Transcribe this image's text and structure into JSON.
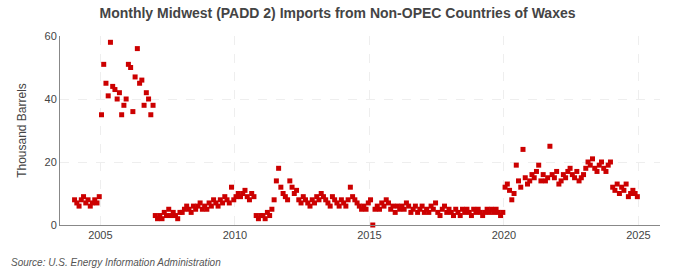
{
  "chart_data": {
    "type": "scatter",
    "title": "Monthly Midwest (PADD 2) Imports from Non-OPEC Countries of Waxes",
    "ylabel": "Thousand Barrels",
    "source": "Source: U.S. Energy Information Administration",
    "color": "#cc0000",
    "marker": "square",
    "grid": true,
    "xlim": [
      2003.5,
      2025.8
    ],
    "xticks": [
      2005,
      2010,
      2015,
      2020,
      2025
    ],
    "ylim": [
      0,
      60
    ],
    "yticks": [
      0,
      20,
      40,
      60
    ],
    "x": [
      2004.0416667,
      2004.125,
      2004.2083333,
      2004.2916667,
      2004.375,
      2004.4583333,
      2004.5416667,
      2004.625,
      2004.7083333,
      2004.7916667,
      2004.875,
      2004.9583333,
      2005.0416667,
      2005.125,
      2005.2083333,
      2005.2916667,
      2005.375,
      2005.4583333,
      2005.5416667,
      2005.625,
      2005.7083333,
      2005.7916667,
      2005.875,
      2005.9583333,
      2006.0416667,
      2006.125,
      2006.2083333,
      2006.2916667,
      2006.375,
      2006.4583333,
      2006.5416667,
      2006.625,
      2006.7083333,
      2006.7916667,
      2006.875,
      2006.9583333,
      2007.0416667,
      2007.125,
      2007.2083333,
      2007.2916667,
      2007.375,
      2007.4583333,
      2007.5416667,
      2007.625,
      2007.7083333,
      2007.7916667,
      2007.875,
      2007.9583333,
      2008.0416667,
      2008.125,
      2008.2083333,
      2008.2916667,
      2008.375,
      2008.4583333,
      2008.5416667,
      2008.625,
      2008.7083333,
      2008.7916667,
      2008.875,
      2008.9583333,
      2009.0416667,
      2009.125,
      2009.2083333,
      2009.2916667,
      2009.375,
      2009.4583333,
      2009.5416667,
      2009.625,
      2009.7083333,
      2009.7916667,
      2009.875,
      2009.9583333,
      2010.0416667,
      2010.125,
      2010.2083333,
      2010.2916667,
      2010.375,
      2010.4583333,
      2010.5416667,
      2010.625,
      2010.7083333,
      2010.7916667,
      2010.875,
      2010.9583333,
      2011.0416667,
      2011.125,
      2011.2083333,
      2011.2916667,
      2011.375,
      2011.4583333,
      2011.5416667,
      2011.625,
      2011.7083333,
      2011.7916667,
      2011.875,
      2011.9583333,
      2012.0416667,
      2012.125,
      2012.2083333,
      2012.2916667,
      2012.375,
      2012.4583333,
      2012.5416667,
      2012.625,
      2012.7083333,
      2012.7916667,
      2012.875,
      2012.9583333,
      2013.0416667,
      2013.125,
      2013.2083333,
      2013.2916667,
      2013.375,
      2013.4583333,
      2013.5416667,
      2013.625,
      2013.7083333,
      2013.7916667,
      2013.875,
      2013.9583333,
      2014.0416667,
      2014.125,
      2014.2083333,
      2014.2916667,
      2014.375,
      2014.4583333,
      2014.5416667,
      2014.625,
      2014.7083333,
      2014.7916667,
      2014.875,
      2014.9583333,
      2015.0416667,
      2015.125,
      2015.2083333,
      2015.2916667,
      2015.375,
      2015.4583333,
      2015.5416667,
      2015.625,
      2015.7083333,
      2015.7916667,
      2015.875,
      2015.9583333,
      2016.0416667,
      2016.125,
      2016.2083333,
      2016.2916667,
      2016.375,
      2016.4583333,
      2016.5416667,
      2016.625,
      2016.7083333,
      2016.7916667,
      2016.875,
      2016.9583333,
      2017.0416667,
      2017.125,
      2017.2083333,
      2017.2916667,
      2017.375,
      2017.4583333,
      2017.5416667,
      2017.625,
      2017.7083333,
      2017.7916667,
      2017.875,
      2017.9583333,
      2018.0416667,
      2018.125,
      2018.2083333,
      2018.2916667,
      2018.375,
      2018.4583333,
      2018.5416667,
      2018.625,
      2018.7083333,
      2018.7916667,
      2018.875,
      2018.9583333,
      2019.0416667,
      2019.125,
      2019.2083333,
      2019.2916667,
      2019.375,
      2019.4583333,
      2019.5416667,
      2019.625,
      2019.7083333,
      2019.7916667,
      2019.875,
      2019.9583333,
      2020.0416667,
      2020.125,
      2020.2083333,
      2020.2916667,
      2020.375,
      2020.4583333,
      2020.5416667,
      2020.625,
      2020.7083333,
      2020.7916667,
      2020.875,
      2020.9583333,
      2021.0416667,
      2021.125,
      2021.2083333,
      2021.2916667,
      2021.375,
      2021.4583333,
      2021.5416667,
      2021.625,
      2021.7083333,
      2021.7916667,
      2021.875,
      2021.9583333,
      2022.0416667,
      2022.125,
      2022.2083333,
      2022.2916667,
      2022.375,
      2022.4583333,
      2022.5416667,
      2022.625,
      2022.7083333,
      2022.7916667,
      2022.875,
      2022.9583333,
      2023.0416667,
      2023.125,
      2023.2083333,
      2023.2916667,
      2023.375,
      2023.4583333,
      2023.5416667,
      2023.625,
      2023.7083333,
      2023.7916667,
      2023.875,
      2023.9583333,
      2024.0416667,
      2024.125,
      2024.2083333,
      2024.2916667,
      2024.375,
      2024.4583333,
      2024.5416667,
      2024.625,
      2024.7083333,
      2024.7916667,
      2024.875,
      2024.9583333
    ],
    "values": [
      8,
      7,
      6,
      8,
      9,
      7,
      8,
      6,
      7,
      8,
      7,
      9,
      35,
      51,
      45,
      41,
      58,
      44,
      43,
      40,
      42,
      35,
      38,
      40,
      51,
      50,
      36,
      47,
      56,
      45,
      46,
      38,
      42,
      40,
      35,
      38,
      3,
      2,
      3,
      2,
      4,
      3,
      5,
      3,
      4,
      3,
      2,
      4,
      4,
      5,
      6,
      5,
      4,
      6,
      5,
      6,
      7,
      5,
      6,
      5,
      7,
      6,
      8,
      7,
      6,
      8,
      7,
      9,
      8,
      7,
      12,
      8,
      9,
      10,
      9,
      10,
      11,
      9,
      8,
      10,
      9,
      3,
      2,
      3,
      3,
      2,
      4,
      3,
      5,
      8,
      14,
      18,
      12,
      10,
      9,
      8,
      14,
      12,
      10,
      11,
      8,
      7,
      9,
      8,
      7,
      6,
      8,
      7,
      9,
      8,
      10,
      9,
      8,
      7,
      6,
      9,
      8,
      7,
      6,
      8,
      7,
      6,
      8,
      12,
      9,
      8,
      7,
      6,
      5,
      6,
      5,
      7,
      8,
      0,
      5,
      6,
      5,
      7,
      6,
      8,
      7,
      5,
      6,
      4,
      6,
      5,
      6,
      5,
      7,
      6,
      4,
      5,
      6,
      4,
      5,
      6,
      4,
      5,
      4,
      6,
      5,
      7,
      4,
      3,
      5,
      6,
      4,
      5,
      4,
      3,
      5,
      4,
      3,
      5,
      4,
      5,
      4,
      3,
      5,
      4,
      5,
      4,
      3,
      4,
      5,
      4,
      5,
      4,
      5,
      4,
      3,
      4,
      12,
      13,
      11,
      8,
      10,
      19,
      14,
      12,
      24,
      15,
      13,
      14,
      16,
      15,
      17,
      19,
      14,
      16,
      14,
      15,
      25,
      16,
      15,
      17,
      13,
      14,
      16,
      15,
      17,
      18,
      16,
      15,
      17,
      14,
      15,
      16,
      18,
      20,
      19,
      21,
      18,
      17,
      19,
      20,
      18,
      17,
      19,
      20,
      12,
      11,
      13,
      10,
      12,
      11,
      13,
      9,
      10,
      11,
      10,
      9
    ]
  }
}
